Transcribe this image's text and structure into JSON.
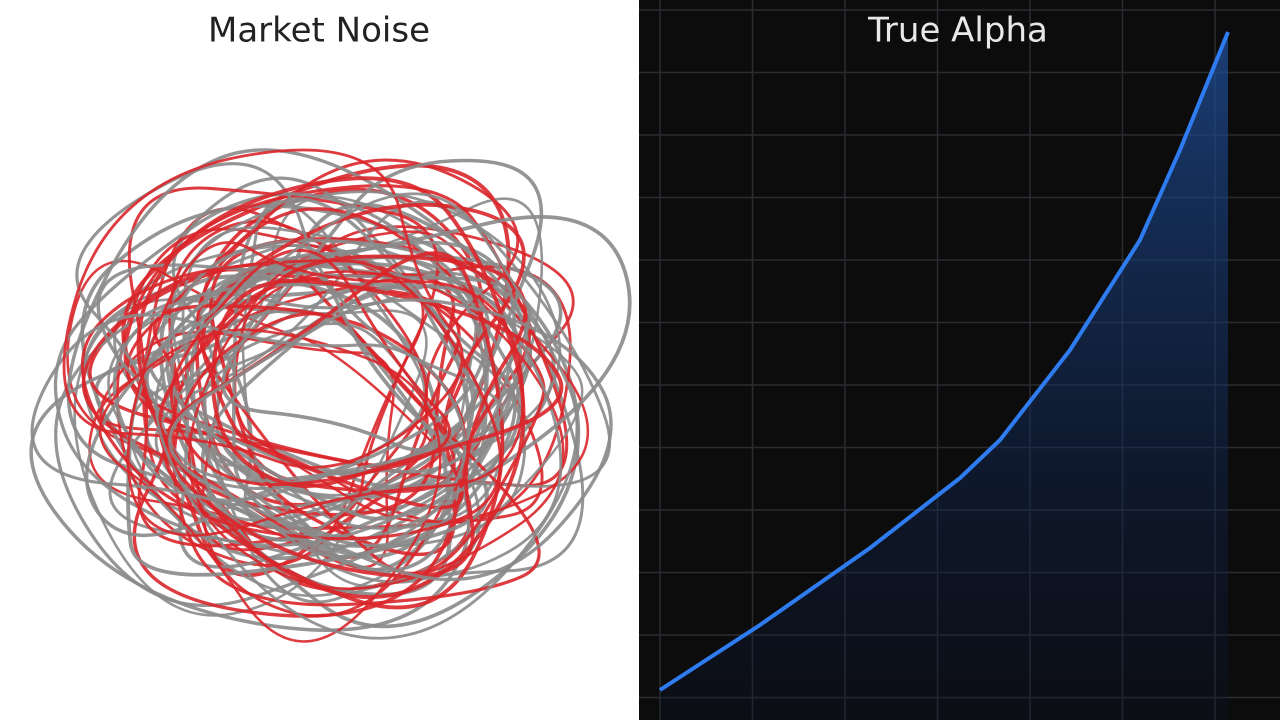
{
  "left_panel": {
    "title": "Market Noise"
  },
  "right_panel": {
    "title": "True Alpha"
  }
}
